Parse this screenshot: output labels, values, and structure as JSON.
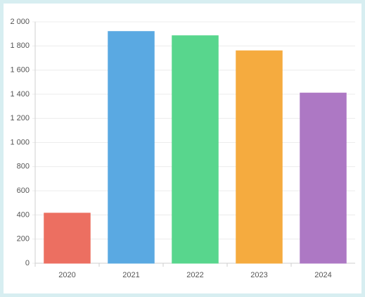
{
  "chart_data": {
    "type": "bar",
    "categories": [
      "2020",
      "2021",
      "2022",
      "2023",
      "2024"
    ],
    "values": [
      415,
      1920,
      1885,
      1760,
      1410
    ],
    "colors": [
      "#ec6f61",
      "#5aa9e2",
      "#58d68d",
      "#f5ab3f",
      "#ad78c4"
    ],
    "ylim": [
      0,
      2000
    ],
    "yticks": [
      0,
      200,
      400,
      600,
      800,
      {
        "value": 1000,
        "label": "1 000"
      },
      {
        "value": 1200,
        "label": "1 200"
      },
      {
        "value": 1400,
        "label": "1 400"
      },
      {
        "value": 1600,
        "label": "1 600"
      },
      {
        "value": 1800,
        "label": "1 800"
      },
      {
        "value": 2000,
        "label": "2 000"
      }
    ],
    "grid": true
  }
}
